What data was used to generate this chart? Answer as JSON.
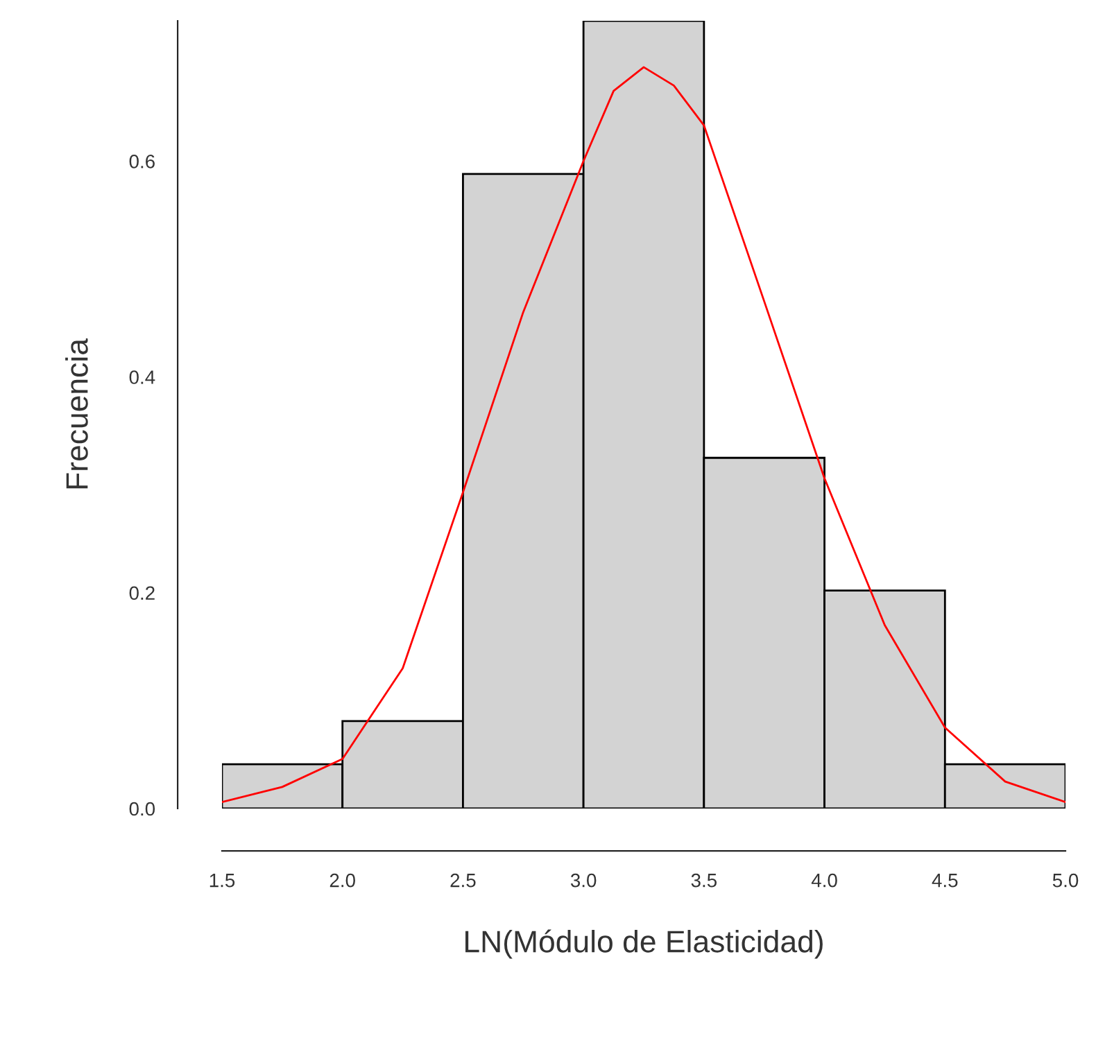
{
  "chart_data": {
    "type": "histogram",
    "xlabel": "LN(Módulo de Elasticidad)",
    "ylabel": "Frecuencia",
    "bins": [
      1.5,
      2.0,
      2.5,
      3.0,
      3.5,
      4.0,
      4.5,
      5.0
    ],
    "values": [
      0.041,
      0.081,
      0.588,
      0.73,
      0.325,
      0.202,
      0.041
    ],
    "color": "#d3d3d3",
    "series": [
      {
        "type": "line",
        "color": "#ff0000",
        "x": [
          1.5,
          1.75,
          2.0,
          2.25,
          2.5,
          2.75,
          3.0,
          3.125,
          3.25,
          3.375,
          3.5,
          3.75,
          4.0,
          4.25,
          4.5,
          4.75,
          5.0
        ],
        "values": [
          0.006,
          0.02,
          0.046,
          0.13,
          0.293,
          0.46,
          0.6,
          0.665,
          0.687,
          0.67,
          0.633,
          0.47,
          0.306,
          0.17,
          0.075,
          0.025,
          0.006
        ]
      }
    ],
    "xlim": [
      1.5,
      5.0
    ],
    "xticks": [
      1.5,
      {
        "value": 2,
        "label": "2.0"
      },
      2.5,
      {
        "value": 3,
        "label": "3.0"
      },
      3.5,
      {
        "value": 4,
        "label": "4.0"
      },
      4.5,
      {
        "value": 5,
        "label": "5.0"
      }
    ],
    "ylim": [
      0,
      0.73
    ],
    "yticks": [
      {
        "value": 0,
        "label": "0.0"
      },
      {
        "value": 0.2,
        "label": "0.2"
      },
      {
        "value": 0.4,
        "label": "0.4"
      },
      {
        "value": 0.6,
        "label": "0.6"
      }
    ],
    "grid": false,
    "legend": false
  }
}
